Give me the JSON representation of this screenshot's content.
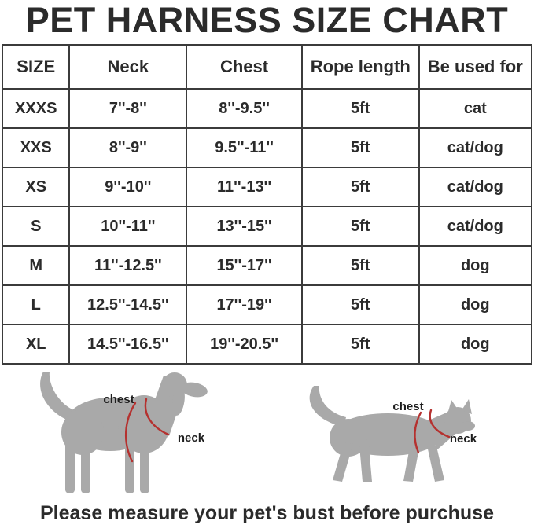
{
  "title": "PET HARNESS SIZE CHART",
  "chart_data": {
    "type": "table",
    "title": "PET HARNESS SIZE CHART",
    "columns": [
      "SIZE",
      "Neck",
      "Chest",
      "Rope length",
      "Be used for"
    ],
    "rows": [
      [
        "XXXS",
        "7''-8''",
        "8''-9.5''",
        "5ft",
        "cat"
      ],
      [
        "XXS",
        "8''-9''",
        "9.5''-11''",
        "5ft",
        "cat/dog"
      ],
      [
        "XS",
        "9''-10''",
        "11''-13''",
        "5ft",
        "cat/dog"
      ],
      [
        "S",
        "10''-11''",
        "13''-15''",
        "5ft",
        "cat/dog"
      ],
      [
        "M",
        "11''-12.5''",
        "15''-17''",
        "5ft",
        "dog"
      ],
      [
        "L",
        "12.5''-14.5''",
        "17''-19''",
        "5ft",
        "dog"
      ],
      [
        "XL",
        "14.5''-16.5''",
        "19''-20.5''",
        "5ft",
        "dog"
      ]
    ]
  },
  "figures": {
    "dog": {
      "chest_label": "chest",
      "neck_label": "neck"
    },
    "cat": {
      "chest_label": "chest",
      "neck_label": "neck"
    }
  },
  "footer": "Please measure your pet's bust before purchuse",
  "colors": {
    "silhouette": "#a9a9a9",
    "measure-line": "#b5312f",
    "text": "#2b2b2b",
    "border": "#3b3b3b"
  }
}
